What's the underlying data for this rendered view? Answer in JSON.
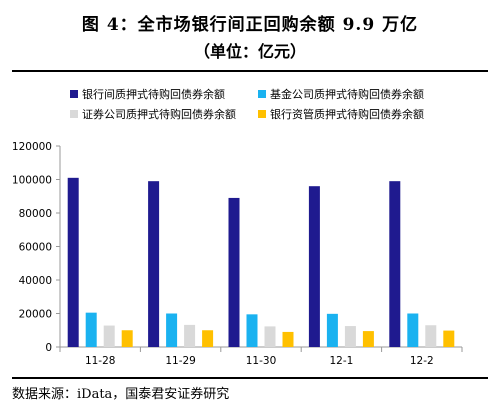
{
  "header": {
    "title": "图 4：全市场银行间正回购余额 9.9 万亿",
    "subtitle": "（单位：亿元）"
  },
  "footer": {
    "source": "数据来源：iData，国泰君安证券研究"
  },
  "chart_data": {
    "type": "bar",
    "categories": [
      "11-28",
      "11-29",
      "11-30",
      "12-1",
      "12-2"
    ],
    "series": [
      {
        "name": "银行间质押式待购回债券余额",
        "color": "#1f1a8f",
        "values": [
          101000,
          99000,
          89000,
          96000,
          99000
        ]
      },
      {
        "name": "基金公司质押式待购回债券余额",
        "color": "#1ab2f0",
        "values": [
          20500,
          20000,
          19500,
          19800,
          20000
        ]
      },
      {
        "name": "证券公司质押式待购回债券余额",
        "color": "#d9d9d9",
        "values": [
          12800,
          13200,
          12300,
          12500,
          13000
        ]
      },
      {
        "name": "银行资管质押式待购回债券余额",
        "color": "#ffc000",
        "values": [
          10000,
          10000,
          9000,
          9500,
          9800
        ]
      }
    ],
    "yticks": [
      0,
      20000,
      40000,
      60000,
      80000,
      100000,
      120000
    ],
    "ylim": [
      0,
      120000
    ],
    "legend_position": "top",
    "grid": false
  }
}
